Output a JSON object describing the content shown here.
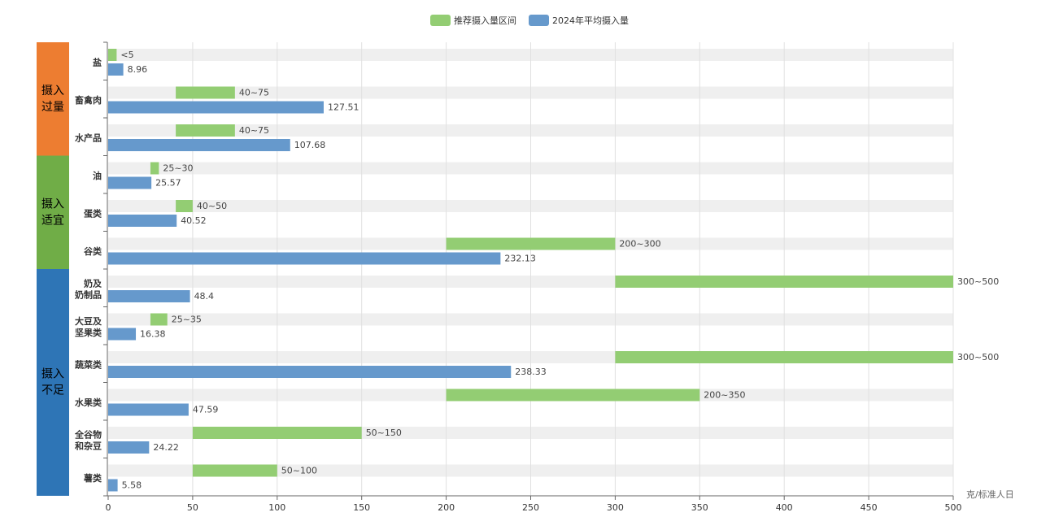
{
  "chart_data": {
    "type": "bar",
    "orientation": "horizontal",
    "categories": [
      [
        "盐"
      ],
      [
        "畜禽肉"
      ],
      [
        "水产品"
      ],
      [
        "油"
      ],
      [
        "蛋类"
      ],
      [
        "谷类"
      ],
      [
        "奶及",
        "奶制品"
      ],
      [
        "大豆及",
        "坚果类"
      ],
      [
        "蔬菜类"
      ],
      [
        "水果类"
      ],
      [
        "全谷物",
        "和杂豆"
      ],
      [
        "薯类"
      ]
    ],
    "series": [
      {
        "name": "推荐摄入量区间",
        "color": "#93cd73",
        "ranges": [
          [
            0,
            5
          ],
          [
            40,
            75
          ],
          [
            40,
            75
          ],
          [
            25,
            30
          ],
          [
            40,
            50
          ],
          [
            200,
            300
          ],
          [
            300,
            500
          ],
          [
            25,
            35
          ],
          [
            300,
            500
          ],
          [
            200,
            350
          ],
          [
            50,
            150
          ],
          [
            50,
            100
          ]
        ],
        "labels": [
          "<5",
          "40~75",
          "40~75",
          "25~30",
          "40~50",
          "200~300",
          "300~500",
          "25~35",
          "300~500",
          "200~350",
          "50~150",
          "50~100"
        ]
      },
      {
        "name": "2024年平均摄入量",
        "color": "#6699cc",
        "values": [
          8.96,
          127.51,
          107.68,
          25.57,
          40.52,
          232.13,
          48.4,
          16.38,
          238.33,
          47.59,
          24.22,
          5.58
        ],
        "labels": [
          "8.96",
          "127.51",
          "107.68",
          "25.57",
          "40.52",
          "232.13",
          "48.4",
          "16.38",
          "238.33",
          "47.59",
          "24.22",
          "5.58"
        ]
      }
    ],
    "xlim": [
      0,
      500
    ],
    "xticks": [
      "0",
      "50",
      "100",
      "150",
      "200",
      "250",
      "300",
      "350",
      "400",
      "450",
      "500"
    ],
    "xunit": "克/标准人日",
    "legend_position": "top-center",
    "grid": true,
    "groups": [
      {
        "label": [
          "摄入",
          "过量"
        ],
        "color": "#ed7d31",
        "from": 0,
        "to": 2
      },
      {
        "label": [
          "摄入",
          "适宜"
        ],
        "color": "#70ad47",
        "from": 3,
        "to": 5
      },
      {
        "label": [
          "摄入",
          "不足"
        ],
        "color": "#2e75b6",
        "from": 6,
        "to": 11
      }
    ]
  }
}
